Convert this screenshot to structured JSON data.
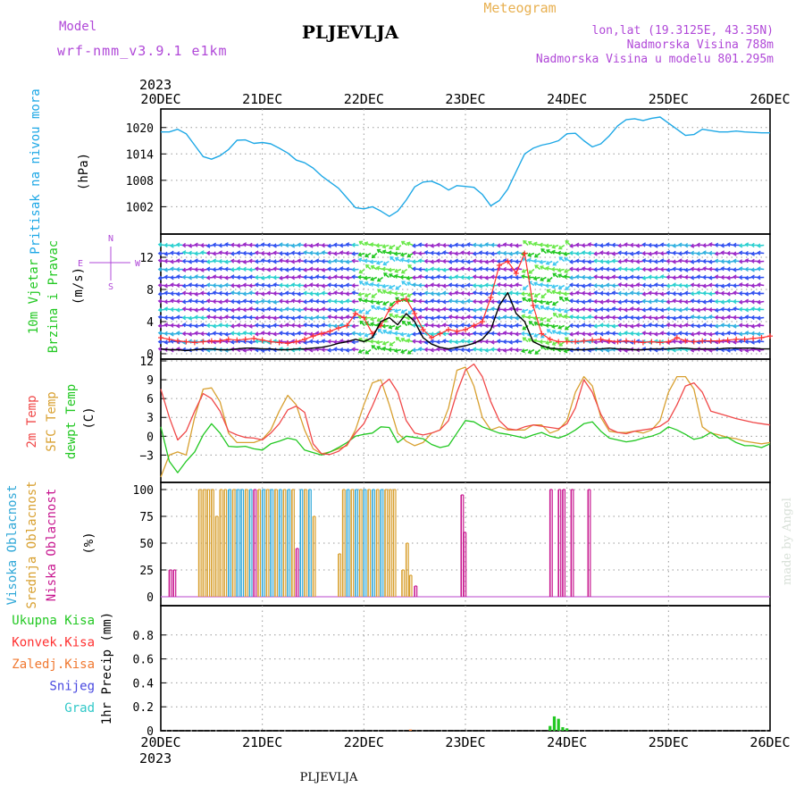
{
  "header": {
    "model_label": "Model",
    "model_name": "wrf-nmm_v3.9.1 e1km",
    "station": "PLJEVLJA",
    "meteogram": "Meteogram",
    "lonlat": "lon,lat (19.3125E, 43.35N)",
    "elevation": "Nadmorska Visina 788m",
    "model_elevation": "Nadmorska Visina u modelu 801.295m",
    "year": "2023",
    "footer_station": "PLJEVLJA",
    "credit": "made by Angel"
  },
  "colors": {
    "pressure": "#1ea8e6",
    "wind_speed": "#000000",
    "gust": "#ff3030",
    "t2m": "#f04848",
    "tsfc": "#d8a030",
    "dewpt": "#22c822",
    "cloud_high": "#30a8d8",
    "cloud_mid": "#d8a030",
    "cloud_low": "#c81890",
    "precip_total": "#22c822",
    "precip_conv": "#ff3030",
    "snow": "#4848e0",
    "frozen": "#f07830",
    "hail": "#30c8c8",
    "label_purple": "#b048d8",
    "label_orange": "#e8b050"
  },
  "chart_data": {
    "type": "line",
    "x_unit": "hours from 2023-12-20 00 UTC",
    "x_ticks": [
      "20DEC",
      "21DEC",
      "22DEC",
      "23DEC",
      "24DEC",
      "25DEC",
      "26DEC"
    ],
    "xlim": [
      0,
      144
    ],
    "panels": [
      {
        "id": "pressure",
        "ylabel": "Pritisak na nivou mora",
        "unit": "(hPa)",
        "ylim": [
          997,
          1023
        ],
        "yticks": [
          1002,
          1008,
          1014,
          1020
        ],
        "series": [
          {
            "color_key": "pressure",
            "x": [
              0,
              2,
              4,
              6,
              8,
              10,
              12,
              14,
              16,
              18,
              20,
              22,
              24,
              26,
              28,
              30,
              32,
              34,
              36,
              38,
              40,
              42,
              44,
              46,
              48,
              50,
              52,
              54,
              56,
              58,
              60,
              62,
              64,
              66,
              68,
              70,
              72,
              74,
              76,
              78,
              80,
              82,
              84,
              86,
              88,
              90,
              92,
              94,
              96,
              98,
              100,
              102,
              104,
              106,
              108,
              110,
              112,
              114,
              116,
              118,
              120,
              122,
              124,
              126,
              128,
              130,
              132,
              134,
              136,
              138,
              140,
              142,
              144
            ],
            "y": [
              1019.0,
              1019.0,
              1019.6,
              1018.6,
              1016.0,
              1013.4,
              1012.8,
              1013.6,
              1015.0,
              1017.1,
              1017.2,
              1016.4,
              1016.6,
              1016.3,
              1015.3,
              1014.2,
              1012.6,
              1012.0,
              1010.8,
              1009.0,
              1007.6,
              1006.2,
              1004.0,
              1001.8,
              1001.5,
              1002.0,
              1001.0,
              999.8,
              1001.0,
              1003.5,
              1006.5,
              1007.6,
              1007.8,
              1007.0,
              1005.8,
              1006.8,
              1006.6,
              1006.4,
              1004.8,
              1002.2,
              1003.4,
              1006.0,
              1010.0,
              1014.0,
              1015.3,
              1016.0,
              1016.4,
              1017.0,
              1018.6,
              1018.7,
              1017.0,
              1015.6,
              1016.3,
              1018.1,
              1020.4,
              1021.8,
              1022.0,
              1021.6,
              1022.1,
              1022.4,
              1021.0,
              1019.6,
              1018.2,
              1018.4,
              1019.6,
              1019.3,
              1019.0,
              1019.0,
              1019.2,
              1019.0,
              1018.9,
              1018.8,
              1018.8
            ]
          }
        ]
      },
      {
        "id": "wind",
        "ylabel": "10m Vjetar",
        "ylabel2": "Brzina i Pravac",
        "unit": "(m/s)",
        "compass": [
          "N",
          "E",
          "W",
          "S"
        ],
        "ylim": [
          0,
          14
        ],
        "yticks": [
          0,
          4,
          8,
          12
        ],
        "speed_x": [
          0,
          2,
          4,
          6,
          8,
          10,
          12,
          14,
          16,
          18,
          20,
          22,
          24,
          26,
          28,
          30,
          32,
          34,
          36,
          38,
          40,
          42,
          44,
          46,
          48,
          50,
          52,
          54,
          56,
          58,
          60,
          62,
          64,
          66,
          68,
          70,
          72,
          74,
          76,
          78,
          80,
          82,
          84,
          86,
          88,
          90,
          92,
          94,
          96,
          98,
          100,
          102,
          104,
          106,
          108,
          110,
          112,
          114,
          116,
          118,
          120,
          122,
          124,
          126,
          128,
          130,
          132,
          134,
          136,
          138,
          140,
          142,
          144
        ],
        "speed": [
          0.6,
          0.5,
          0.5,
          0.4,
          0.5,
          0.6,
          0.6,
          0.5,
          0.5,
          0.6,
          0.7,
          0.7,
          0.6,
          0.6,
          0.5,
          0.5,
          0.6,
          0.6,
          0.7,
          0.8,
          1.0,
          1.3,
          1.5,
          1.8,
          1.5,
          2.0,
          4.0,
          4.5,
          3.6,
          5.0,
          4.0,
          2.0,
          1.2,
          0.8,
          0.6,
          0.8,
          1.0,
          1.3,
          1.8,
          3.0,
          6.0,
          7.6,
          5.0,
          4.0,
          1.5,
          1.0,
          0.7,
          0.6,
          0.6,
          0.5,
          0.5,
          0.6,
          0.6,
          0.7,
          0.6,
          0.6,
          0.5,
          0.5,
          0.6,
          0.6,
          0.6,
          0.7,
          0.7,
          0.6,
          0.6,
          0.6,
          0.6,
          0.7,
          0.7,
          0.7,
          0.7,
          0.6,
          0.6
        ],
        "gust": [
          2.0,
          1.8,
          1.6,
          1.5,
          1.4,
          1.5,
          1.6,
          1.6,
          1.8,
          1.7,
          1.8,
          1.9,
          1.7,
          1.5,
          1.4,
          1.3,
          1.5,
          1.8,
          2.2,
          2.5,
          2.8,
          3.2,
          3.5,
          5.0,
          4.5,
          2.5,
          3.5,
          5.5,
          6.5,
          6.8,
          5.0,
          3.0,
          2.0,
          2.5,
          3.0,
          2.8,
          3.0,
          3.5,
          4.0,
          7.0,
          11.0,
          11.5,
          10.0,
          12.5,
          6.0,
          2.5,
          1.8,
          1.5,
          1.5,
          1.5,
          1.6,
          1.7,
          1.8,
          1.6,
          1.5,
          1.6,
          1.5,
          1.4,
          1.5,
          1.4,
          1.5,
          2.0,
          1.6,
          1.5,
          1.6,
          1.6,
          1.6,
          1.7,
          1.8,
          1.8,
          1.9,
          2.0,
          2.2
        ]
      },
      {
        "id": "temperature",
        "ylabel": "2m Temp",
        "ylabel2": "SFC Temp",
        "ylabel3": "dewpt Temp",
        "unit": "(C)",
        "ylim": [
          -6.5,
          12
        ],
        "yticks": [
          -3,
          0,
          3,
          6,
          9,
          12
        ],
        "x": [
          0,
          2,
          4,
          6,
          8,
          10,
          12,
          14,
          16,
          18,
          20,
          22,
          24,
          26,
          28,
          30,
          32,
          34,
          36,
          38,
          40,
          42,
          44,
          46,
          48,
          50,
          52,
          54,
          56,
          58,
          60,
          62,
          64,
          66,
          68,
          70,
          72,
          74,
          76,
          78,
          80,
          82,
          84,
          86,
          88,
          90,
          92,
          94,
          96,
          98,
          100,
          102,
          104,
          106,
          108,
          110,
          112,
          114,
          116,
          118,
          120,
          122,
          124,
          126,
          128,
          130,
          132,
          134,
          136,
          138,
          140,
          142,
          144
        ],
        "t2m": [
          7.5,
          3.0,
          -0.6,
          0.8,
          4.0,
          6.8,
          6.0,
          4.0,
          0.8,
          0.2,
          -0.2,
          -0.3,
          -0.6,
          0.5,
          2.0,
          4.2,
          4.8,
          3.8,
          -1.2,
          -2.8,
          -2.9,
          -2.4,
          -1.3,
          0.5,
          2.0,
          4.8,
          8.0,
          9.1,
          7.0,
          2.5,
          0.5,
          0.2,
          0.5,
          1.0,
          2.5,
          7.0,
          10.5,
          11.5,
          9.5,
          5.5,
          2.5,
          1.2,
          1.0,
          1.5,
          1.8,
          1.6,
          1.4,
          1.2,
          2.0,
          4.5,
          9.0,
          7.0,
          3.5,
          1.2,
          0.6,
          0.4,
          0.8,
          1.0,
          1.2,
          1.6,
          2.5,
          5.0,
          8.0,
          8.5,
          7.0,
          4.0,
          3.6,
          3.2,
          2.8,
          2.5,
          2.2,
          2.0,
          1.8
        ],
        "tsfc": [
          -6.5,
          -3.0,
          -2.5,
          -3.0,
          3.0,
          7.5,
          7.7,
          5.5,
          0.5,
          -1.0,
          -1.0,
          -1.0,
          -0.5,
          1.0,
          4.0,
          6.5,
          5.0,
          1.0,
          -2.0,
          -2.8,
          -2.5,
          -2.0,
          -1.5,
          1.0,
          5.0,
          8.5,
          9.0,
          5.0,
          0.5,
          -0.8,
          -1.5,
          -1.0,
          0.5,
          1.0,
          4.5,
          10.5,
          11.0,
          8.0,
          3.0,
          1.0,
          1.5,
          1.0,
          1.0,
          1.0,
          1.8,
          1.8,
          0.5,
          1.0,
          2.5,
          7.0,
          9.5,
          8.0,
          3.0,
          0.8,
          0.6,
          0.6,
          0.8,
          0.5,
          1.0,
          2.5,
          7.0,
          9.5,
          9.5,
          7.5,
          1.5,
          0.5,
          0.2,
          -0.2,
          -0.4,
          -0.8,
          -1.0,
          -1.2,
          -1.0
        ],
        "dewpt": [
          1.5,
          -4.0,
          -5.8,
          -4.0,
          -2.5,
          0.2,
          2.0,
          0.5,
          -1.6,
          -1.7,
          -1.6,
          -2.0,
          -2.2,
          -1.2,
          -0.8,
          -0.3,
          -0.6,
          -2.2,
          -2.6,
          -3.0,
          -2.5,
          -1.8,
          -1.0,
          0.0,
          0.3,
          0.5,
          1.5,
          1.4,
          -1.0,
          0.0,
          -0.2,
          -0.4,
          -1.3,
          -1.8,
          -1.5,
          0.5,
          2.5,
          2.3,
          1.5,
          1.0,
          0.5,
          0.3,
          0.0,
          -0.3,
          0.2,
          0.6,
          0.0,
          -0.3,
          0.2,
          1.0,
          2.0,
          2.3,
          0.8,
          -0.3,
          -0.6,
          -0.9,
          -0.7,
          -0.3,
          0.0,
          0.5,
          1.5,
          1.0,
          0.3,
          -0.5,
          -0.2,
          0.6,
          -0.3,
          -0.2,
          -1.0,
          -1.5,
          -1.5,
          -1.8,
          -1.2
        ]
      },
      {
        "id": "cloud",
        "ylabel": "Visoka Oblacnost",
        "ylabel2": "Srednja Oblacnost",
        "ylabel3": "Niska Oblacnost",
        "unit": "(%)",
        "ylim": [
          0,
          100
        ],
        "yticks": [
          0,
          25,
          50,
          75,
          100
        ],
        "bars": [
          {
            "t": 2.0,
            "v": 25,
            "k": "low"
          },
          {
            "t": 3.0,
            "v": 25,
            "k": "low"
          },
          {
            "t": 9.0,
            "v": 100,
            "k": "mid"
          },
          {
            "t": 10.0,
            "v": 100,
            "k": "mid"
          },
          {
            "t": 11.0,
            "v": 100,
            "k": "mid"
          },
          {
            "t": 12.0,
            "v": 100,
            "k": "mid"
          },
          {
            "t": 13.0,
            "v": 75,
            "k": "mid"
          },
          {
            "t": 14.0,
            "v": 100,
            "k": "mid"
          },
          {
            "t": 15.0,
            "v": 100,
            "k": "mid"
          },
          {
            "t": 16.0,
            "v": 100,
            "k": "high"
          },
          {
            "t": 17.0,
            "v": 100,
            "k": "mid"
          },
          {
            "t": 18.0,
            "v": 100,
            "k": "high"
          },
          {
            "t": 19.0,
            "v": 100,
            "k": "high"
          },
          {
            "t": 20.0,
            "v": 100,
            "k": "mid"
          },
          {
            "t": 21.0,
            "v": 100,
            "k": "high"
          },
          {
            "t": 22.0,
            "v": 100,
            "k": "low"
          },
          {
            "t": 23.0,
            "v": 100,
            "k": "mid"
          },
          {
            "t": 24.0,
            "v": 100,
            "k": "high"
          },
          {
            "t": 25.0,
            "v": 100,
            "k": "mid"
          },
          {
            "t": 26.0,
            "v": 100,
            "k": "high"
          },
          {
            "t": 27.0,
            "v": 100,
            "k": "mid"
          },
          {
            "t": 28.0,
            "v": 100,
            "k": "high"
          },
          {
            "t": 29.0,
            "v": 100,
            "k": "mid"
          },
          {
            "t": 30.0,
            "v": 100,
            "k": "high"
          },
          {
            "t": 31.0,
            "v": 100,
            "k": "mid"
          },
          {
            "t": 32.0,
            "v": 45,
            "k": "low"
          },
          {
            "t": 33.0,
            "v": 100,
            "k": "high"
          },
          {
            "t": 34.0,
            "v": 100,
            "k": "mid"
          },
          {
            "t": 35.0,
            "v": 100,
            "k": "high"
          },
          {
            "t": 36.0,
            "v": 75,
            "k": "mid"
          },
          {
            "t": 42.0,
            "v": 40,
            "k": "mid"
          },
          {
            "t": 43.0,
            "v": 100,
            "k": "mid"
          },
          {
            "t": 44.0,
            "v": 100,
            "k": "high"
          },
          {
            "t": 45.0,
            "v": 100,
            "k": "mid"
          },
          {
            "t": 46.0,
            "v": 100,
            "k": "high"
          },
          {
            "t": 47.0,
            "v": 100,
            "k": "mid"
          },
          {
            "t": 48.0,
            "v": 100,
            "k": "high"
          },
          {
            "t": 49.0,
            "v": 100,
            "k": "mid"
          },
          {
            "t": 50.0,
            "v": 100,
            "k": "high"
          },
          {
            "t": 51.0,
            "v": 100,
            "k": "mid"
          },
          {
            "t": 52.0,
            "v": 100,
            "k": "high"
          },
          {
            "t": 53.0,
            "v": 100,
            "k": "mid"
          },
          {
            "t": 54.0,
            "v": 100,
            "k": "mid"
          },
          {
            "t": 55.0,
            "v": 100,
            "k": "mid"
          },
          {
            "t": 57.0,
            "v": 25,
            "k": "mid"
          },
          {
            "t": 58.0,
            "v": 50,
            "k": "mid"
          },
          {
            "t": 58.8,
            "v": 20,
            "k": "mid"
          },
          {
            "t": 60.0,
            "v": 10,
            "k": "low"
          },
          {
            "t": 71.0,
            "v": 95,
            "k": "low"
          },
          {
            "t": 71.6,
            "v": 60,
            "k": "low"
          },
          {
            "t": 92.0,
            "v": 100,
            "k": "low"
          },
          {
            "t": 94.0,
            "v": 100,
            "k": "low"
          },
          {
            "t": 95.0,
            "v": 100,
            "k": "low"
          },
          {
            "t": 97.0,
            "v": 100,
            "k": "low"
          },
          {
            "t": 101.0,
            "v": 100,
            "k": "low"
          }
        ]
      },
      {
        "id": "precip",
        "ylabel": "1hr Precip (mm)",
        "legend": [
          "Ukupna Kisa",
          "Konvek.Kisa",
          "Zaledj.Kisa",
          "Snijeg",
          "Grad"
        ],
        "ylim": [
          0,
          1.0
        ],
        "yticks": [
          0,
          0.2,
          0.4,
          0.6,
          0.8
        ],
        "bars": [
          {
            "t": 59.0,
            "v": 0.01,
            "k": "frozen"
          },
          {
            "t": 92.0,
            "v": 0.04,
            "k": "total"
          },
          {
            "t": 93.0,
            "v": 0.12,
            "k": "total"
          },
          {
            "t": 94.0,
            "v": 0.1,
            "k": "total"
          },
          {
            "t": 95.0,
            "v": 0.03,
            "k": "total"
          },
          {
            "t": 96.0,
            "v": 0.02,
            "k": "total"
          }
        ]
      }
    ]
  }
}
